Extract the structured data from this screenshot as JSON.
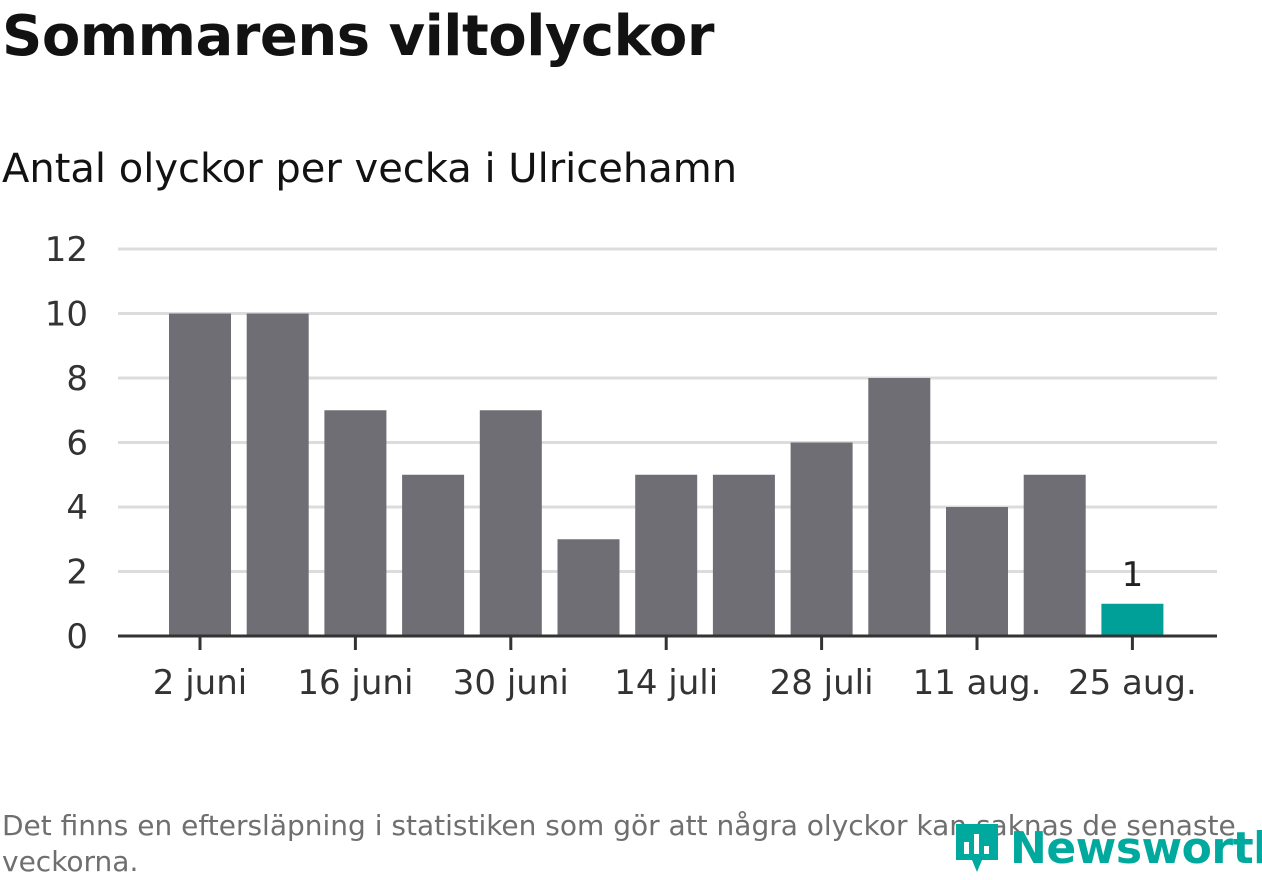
{
  "header": {
    "title": "Sommarens viltolyckor",
    "subtitle": "Antal olyckor per vecka i Ulricehamn"
  },
  "footnote": "Det finns en eftersläpning i statistiken som gör att några olyckor kan saknas de senaste veckorna.",
  "brand": {
    "name": "Newsworthy",
    "icon": "bar-chart-pin-icon",
    "color": "#00a99d"
  },
  "chart_data": {
    "type": "bar",
    "values": [
      10,
      10,
      7,
      5,
      7,
      3,
      5,
      5,
      6,
      8,
      4,
      5,
      1
    ],
    "highlight_index": 12,
    "highlight_label": "1",
    "x_tick_labels": [
      "2 juni",
      "16 juni",
      "30 juni",
      "14 juli",
      "28 juli",
      "11 aug.",
      "25 aug."
    ],
    "x_tick_every": 2,
    "y_ticks": [
      0,
      2,
      4,
      6,
      8,
      10,
      12
    ],
    "ylim": [
      0,
      12
    ],
    "grid": true,
    "colors": {
      "bar": "#6f6e74",
      "highlight": "#00a099",
      "grid": "#dcdcdc",
      "axis": "#333333"
    }
  }
}
